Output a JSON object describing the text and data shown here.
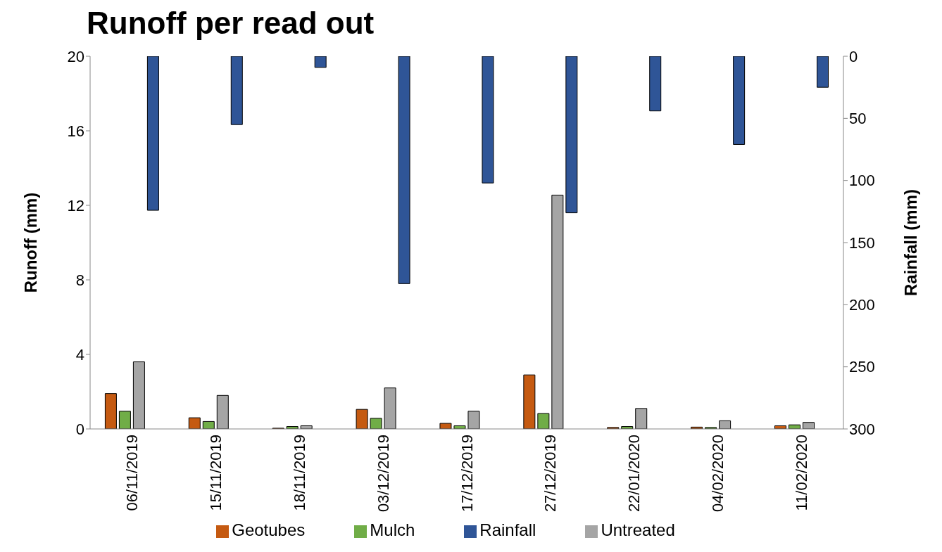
{
  "chart_data": {
    "type": "bar",
    "title": "Runoff per read out",
    "ylabel": "Runoff (mm)",
    "y2label": "Rainfall (mm)",
    "categories": [
      "06/11/2019",
      "15/11/2019",
      "18/11/2019",
      "03/12/2019",
      "17/12/2019",
      "27/12/2019",
      "22/01/2020",
      "04/02/2020",
      "11/02/2020"
    ],
    "series": [
      {
        "name": "Geotubes",
        "color": "#c55a11",
        "values": [
          1.9,
          0.6,
          0.04,
          1.05,
          0.3,
          2.9,
          0.08,
          0.1,
          0.17
        ]
      },
      {
        "name": "Mulch",
        "color": "#70ad47",
        "values": [
          0.95,
          0.4,
          0.13,
          0.57,
          0.17,
          0.83,
          0.13,
          0.08,
          0.22
        ]
      },
      {
        "name": "Untreated",
        "color": "#a5a5a5",
        "values": [
          3.6,
          1.8,
          0.17,
          2.2,
          0.95,
          12.55,
          1.1,
          0.44,
          0.35
        ]
      },
      {
        "name": "Rainfall",
        "color": "#2f5597",
        "axis": "y2",
        "values": [
          124,
          55,
          9,
          183,
          102,
          126,
          44,
          71,
          25
        ]
      }
    ],
    "ylim": [
      0,
      20
    ],
    "yticks": [
      0,
      4,
      8,
      12,
      16,
      20
    ],
    "y2lim": [
      300,
      0
    ],
    "y2ticks": [
      0,
      50,
      100,
      150,
      200,
      250,
      300
    ],
    "legend": "bottom",
    "grid": false
  }
}
